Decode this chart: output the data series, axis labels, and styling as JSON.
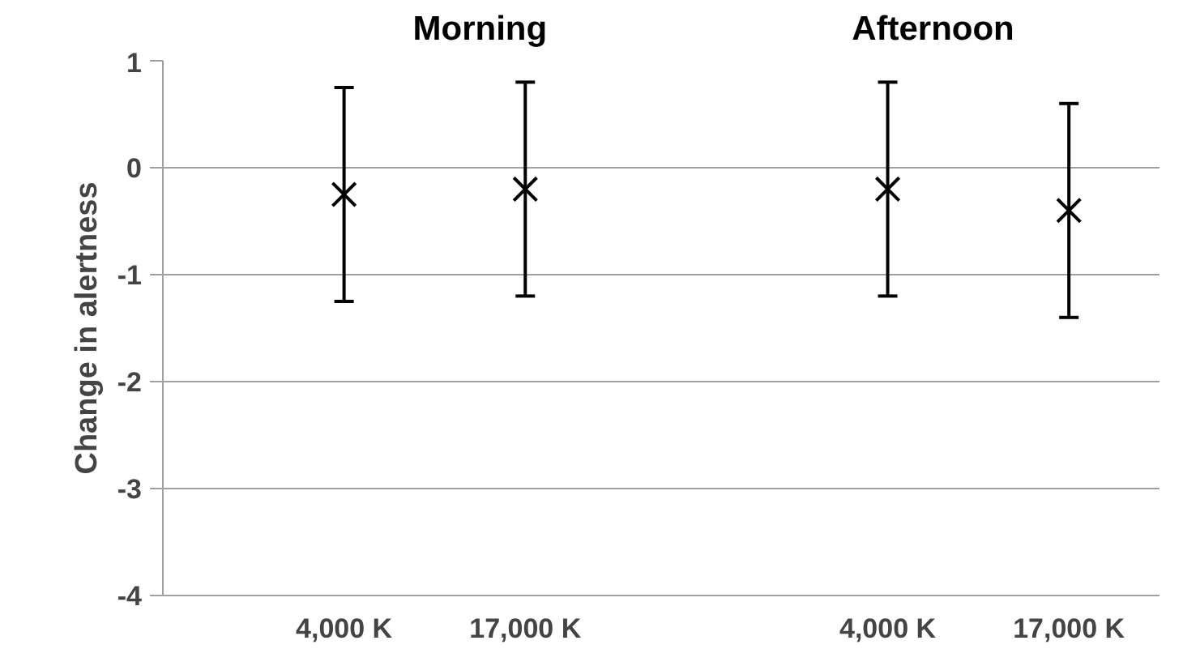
{
  "chart_data": {
    "type": "scatter",
    "ylabel": "Change in alertness",
    "categories": [
      "4,000 K",
      "17,000 K",
      null,
      "4,000 K",
      "17,000 K"
    ],
    "series": [
      {
        "color": "#000000",
        "values": [
          -0.25,
          -0.2,
          null,
          -0.2,
          -0.4
        ],
        "errors": [
          1.0,
          1.0,
          null,
          1.0,
          1.0
        ]
      }
    ],
    "ylim": [
      -4,
      1
    ],
    "yticks": [
      -4,
      -3,
      -2,
      -1,
      0,
      1
    ],
    "grid": "y",
    "marker": "cross",
    "annotations": [
      "Morning",
      "Afternoon"
    ]
  }
}
